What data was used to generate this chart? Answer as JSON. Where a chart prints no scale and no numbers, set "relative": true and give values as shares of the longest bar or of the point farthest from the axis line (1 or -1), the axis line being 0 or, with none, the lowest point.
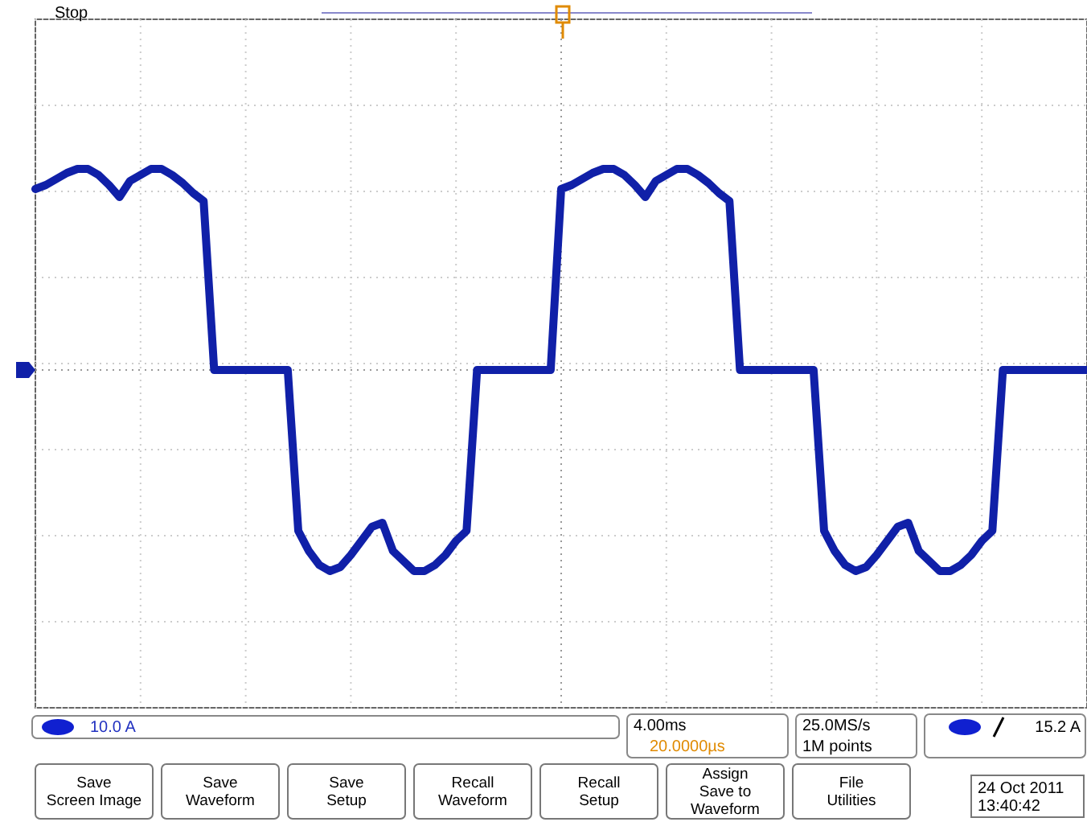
{
  "chart_data": {
    "type": "line",
    "relative": true,
    "grid": true,
    "ref_lines": [
      {
        "axis": "y",
        "value": 0,
        "color": "#999999",
        "line_style": "dotted"
      }
    ],
    "line_style": "solid",
    "marker": "none",
    "categories": [
      null,
      null,
      null,
      null,
      null,
      null,
      null,
      null,
      null,
      null,
      null,
      null,
      null,
      null,
      null,
      null,
      null,
      null,
      null,
      null,
      null,
      null,
      null,
      null,
      null,
      null,
      null,
      null,
      null,
      null,
      null,
      null,
      null,
      null,
      null,
      null,
      null,
      null,
      null,
      null,
      null,
      null,
      null,
      null,
      null,
      null,
      null,
      null,
      null,
      null,
      null,
      null,
      null,
      null,
      null,
      null,
      null,
      null,
      null,
      null,
      null,
      null,
      null,
      null,
      null,
      null,
      null,
      null,
      null,
      null,
      null,
      null,
      null,
      null,
      null,
      null,
      null,
      null,
      null,
      null,
      null,
      null,
      null,
      null,
      null,
      null,
      null,
      null,
      null,
      null,
      null,
      null,
      null,
      null,
      null,
      null,
      null,
      null,
      null,
      null,
      null
    ],
    "series": [
      {
        "color": "#1020a8",
        "values": [
          0.9,
          0.92,
          0.95,
          0.98,
          1.0,
          1.0,
          0.97,
          0.92,
          0.86,
          0.94,
          0.97,
          1.0,
          1.0,
          0.97,
          0.93,
          0.88,
          0.84,
          0,
          0,
          0,
          0,
          0,
          0,
          0,
          0,
          -0.8,
          -0.9,
          -0.97,
          -1.0,
          -0.98,
          -0.92,
          -0.85,
          -0.78,
          -0.76,
          -0.9,
          -0.95,
          -1.0,
          -1.0,
          -0.97,
          -0.92,
          -0.85,
          -0.8,
          0,
          0,
          0,
          0,
          0,
          0,
          0,
          0,
          0.9,
          0.92,
          0.95,
          0.98,
          1.0,
          1.0,
          0.97,
          0.92,
          0.86,
          0.94,
          0.97,
          1.0,
          1.0,
          0.97,
          0.93,
          0.88,
          0.84,
          0,
          0,
          0,
          0,
          0,
          0,
          0,
          0,
          -0.8,
          -0.9,
          -0.97,
          -1.0,
          -0.98,
          -0.92,
          -0.85,
          -0.78,
          -0.76,
          -0.9,
          -0.95,
          -1.0,
          -1.0,
          -0.97,
          -0.92,
          -0.85,
          -0.8,
          0,
          0,
          0,
          0,
          0,
          0,
          0,
          0,
          0
        ]
      }
    ],
    "annotations": [
      "Stop",
      "10.0 A",
      "4.00ms",
      "20.0000µs",
      "25.0MS/s",
      "1M points",
      "15.2 A",
      "Save\nScreen Image",
      "Save\nWaveform",
      "Save\nSetup",
      "Recall\nWaveform",
      "Recall\nSetup",
      "Assign\nSave to\nWaveform",
      "File\nUtilities",
      "24 Oct 2011",
      "13:40:42"
    ]
  }
}
